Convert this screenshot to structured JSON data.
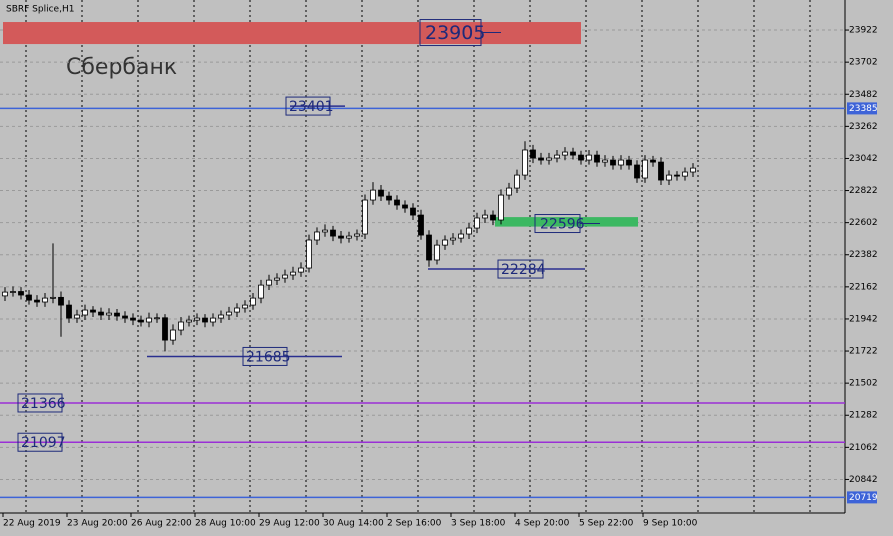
{
  "chart_data": {
    "type": "candlestick",
    "title": "SBRF Splice,H1",
    "watermark": "Сбербанк",
    "categories": [
      "22 Aug 2019",
      null,
      null,
      null,
      null,
      null,
      null,
      null,
      "23 Aug 20:00",
      null,
      null,
      null,
      null,
      null,
      null,
      null,
      "26 Aug 22:00",
      null,
      null,
      null,
      null,
      null,
      null,
      null,
      "28 Aug 10:00",
      null,
      null,
      null,
      null,
      null,
      null,
      null,
      "29 Aug 12:00",
      null,
      null,
      null,
      null,
      null,
      null,
      null,
      "30 Aug 14:00",
      null,
      null,
      null,
      null,
      null,
      null,
      null,
      "2 Sep 16:00",
      null,
      null,
      null,
      null,
      null,
      null,
      null,
      "3 Sep 18:00",
      null,
      null,
      null,
      null,
      null,
      null,
      null,
      "4 Sep 20:00",
      null,
      null,
      null,
      null,
      null,
      null,
      null,
      "5 Sep 22:00",
      null,
      null,
      null,
      null,
      null,
      null,
      null,
      "9 Sep 10:00",
      null,
      null,
      null,
      null,
      null,
      null
    ],
    "open": [
      22100,
      22126,
      22130,
      22106,
      22071,
      22058,
      22085,
      22090,
      22037,
      21948,
      21969,
      22003,
      21989,
      21969,
      21982,
      21962,
      21948,
      21934,
      21921,
      21948,
      21950,
      21797,
      21866,
      21921,
      21934,
      21948,
      21921,
      21948,
      21969,
      21989,
      22017,
      22037,
      22085,
      22174,
      22208,
      22222,
      22243,
      22263,
      22291,
      22483,
      22538,
      22551,
      22510,
      22496,
      22510,
      22524,
      22757,
      22825,
      22784,
      22757,
      22723,
      22702,
      22654,
      22517,
      22346,
      22448,
      22483,
      22496,
      22524,
      22565,
      22634,
      22654,
      22620,
      22791,
      22839,
      22928,
      23100,
      23045,
      23031,
      23045,
      23065,
      23086,
      23065,
      23031,
      23065,
      23017,
      23031,
      22997,
      23031,
      22997,
      22908,
      23031,
      23017,
      22894,
      22928,
      22921,
      22949
    ],
    "high": [
      22160,
      22165,
      22160,
      22140,
      22105,
      22120,
      22460,
      22130,
      22070,
      22005,
      22040,
      22030,
      22020,
      22015,
      22010,
      21995,
      21980,
      21965,
      21985,
      21980,
      21975,
      21905,
      21955,
      21965,
      21980,
      21975,
      21980,
      22000,
      22025,
      22050,
      22070,
      22120,
      22210,
      22245,
      22255,
      22280,
      22300,
      22330,
      22520,
      22570,
      22590,
      22580,
      22545,
      22540,
      22555,
      22795,
      22880,
      22860,
      22815,
      22790,
      22755,
      22735,
      22690,
      22550,
      22485,
      22515,
      22530,
      22555,
      22600,
      22670,
      22690,
      22685,
      22830,
      22875,
      22965,
      23160,
      23135,
      23080,
      23080,
      23100,
      23120,
      23115,
      23095,
      23100,
      23095,
      23065,
      23060,
      23065,
      23060,
      23030,
      23065,
      23060,
      23050,
      22960,
      22955,
      22980,
      23010
    ],
    "low": [
      22065,
      22095,
      22075,
      22040,
      22025,
      22025,
      22050,
      21820,
      21915,
      21915,
      21935,
      21955,
      21935,
      21935,
      21930,
      21915,
      21900,
      21890,
      21885,
      21915,
      21720,
      21765,
      21830,
      21890,
      21900,
      21885,
      21890,
      21915,
      21935,
      21955,
      21985,
      22005,
      22050,
      22140,
      22175,
      22190,
      22210,
      22230,
      22260,
      22450,
      22505,
      22475,
      22460,
      22465,
      22480,
      22490,
      22725,
      22750,
      22725,
      22690,
      22670,
      22620,
      22485,
      22300,
      22315,
      22415,
      22450,
      22465,
      22490,
      22530,
      22600,
      22585,
      22590,
      22760,
      22805,
      22895,
      23010,
      23000,
      23000,
      23015,
      23030,
      23035,
      23000,
      23000,
      22985,
      22985,
      22965,
      22965,
      22965,
      22875,
      22875,
      22985,
      22860,
      22860,
      22890,
      22890,
      22915
    ],
    "close": [
      22126,
      22130,
      22106,
      22071,
      22058,
      22085,
      22090,
      22037,
      21948,
      21969,
      22003,
      21989,
      21969,
      21982,
      21962,
      21948,
      21934,
      21921,
      21948,
      21950,
      21797,
      21866,
      21921,
      21934,
      21948,
      21921,
      21948,
      21969,
      21989,
      22017,
      22037,
      22085,
      22174,
      22208,
      22222,
      22243,
      22263,
      22291,
      22483,
      22538,
      22551,
      22510,
      22496,
      22510,
      22524,
      22757,
      22825,
      22784,
      22757,
      22723,
      22702,
      22654,
      22517,
      22346,
      22448,
      22483,
      22496,
      22524,
      22565,
      22634,
      22654,
      22620,
      22791,
      22839,
      22928,
      23100,
      23045,
      23031,
      23045,
      23065,
      23086,
      23065,
      23031,
      23065,
      23017,
      23031,
      22997,
      23031,
      22997,
      22908,
      23031,
      23017,
      22894,
      22928,
      22921,
      22949,
      22976
    ],
    "up_color": "#ffffff",
    "down_color": "#000000",
    "ylim": [
      20612,
      24128
    ],
    "yticks": [
      23922,
      23702,
      23482,
      23262,
      23042,
      22822,
      22602,
      22382,
      22162,
      21942,
      21722,
      21502,
      21282,
      21062,
      20842
    ],
    "grid": true,
    "levels": [
      {
        "value": 23385,
        "color": "#3d63d8",
        "tag": "axis"
      },
      {
        "value": 21366,
        "color": "#9a2fd6",
        "tag": "left"
      },
      {
        "value": 21097,
        "color": "#9a2fd6",
        "tag": "left"
      },
      {
        "value": 20719,
        "color": "#3d63d8",
        "tag": "axis"
      }
    ],
    "zones": [
      {
        "from": 23826,
        "to": 23977,
        "color": "#d35a5a",
        "label": 23905
      },
      {
        "from": 22575,
        "to": 22640,
        "color": "#3cb862",
        "label": 22596
      }
    ],
    "segments": [
      {
        "value": 23401,
        "color": "#2a2f8f"
      },
      {
        "value": 22284,
        "color": "#2a2f8f"
      },
      {
        "value": 21685,
        "color": "#2a2f8f"
      }
    ]
  }
}
